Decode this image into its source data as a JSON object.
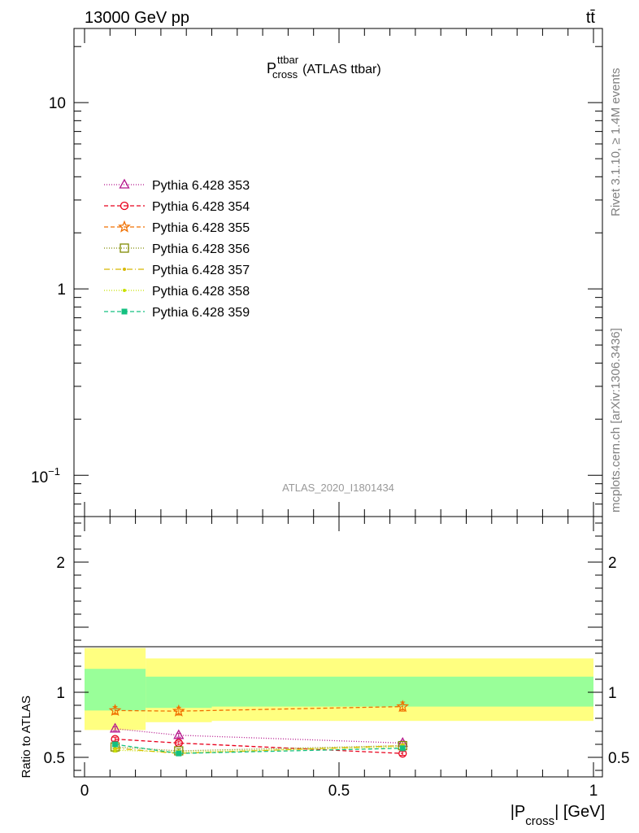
{
  "header": {
    "left_label": "13000 GeV pp",
    "right_label": "tt̄"
  },
  "top_panel": {
    "title_main": "P",
    "title_sup": "ttbar",
    "title_sub": "cross",
    "title_suffix": "(ATLAS ttbar)",
    "watermark": "ATLAS_2020_I1801434",
    "y_ticks": [
      {
        "value": 10,
        "label": "10"
      },
      {
        "value": 1,
        "label": "1"
      },
      {
        "value": 0.1,
        "label_base": "10",
        "label_exp": "−1"
      }
    ],
    "y_scale": "log",
    "ylim": [
      0.06,
      25
    ]
  },
  "side_labels": {
    "rivet": "Rivet 3.1.10, ≥ 1.4M events",
    "mcplots": "mcplots.cern.ch [arXiv:1306.3436]"
  },
  "legend": {
    "placement": "top-left",
    "entries": [
      {
        "label": "Pythia 6.428 353",
        "color": "#b5168c",
        "marker": "triangle-open",
        "dash": "1,2"
      },
      {
        "label": "Pythia 6.428 354",
        "color": "#e8001c",
        "marker": "circle-open",
        "dash": "5,3"
      },
      {
        "label": "Pythia 6.428 355",
        "color": "#f07000",
        "marker": "star-open",
        "dash": "5,3"
      },
      {
        "label": "Pythia 6.428 356",
        "color": "#7f8a00",
        "marker": "square-open",
        "dash": "1,2"
      },
      {
        "label": "Pythia 6.428 357",
        "color": "#d8b800",
        "marker": "dot-small",
        "dash": "7,3,1,3"
      },
      {
        "label": "Pythia 6.428 358",
        "color": "#c8e000",
        "marker": "dot-small",
        "dash": "1,2"
      },
      {
        "label": "Pythia 6.428 359",
        "color": "#14c080",
        "marker": "square-filled",
        "dash": "5,3"
      }
    ]
  },
  "chart_data": {
    "type": "line",
    "x_label_pre": "|P",
    "x_label_sub": "cross",
    "x_label_post": "| [GeV]",
    "ratio_ylabel": "Ratio to ATLAS",
    "xlim": [
      0,
      1
    ],
    "ratio_ylim": [
      0.35,
      2.35
    ],
    "x_ticks": [
      "0",
      "0.5",
      "1"
    ],
    "ratio_y_ticks": [
      "0.5",
      "1",
      "2"
    ],
    "bins": [
      {
        "lo": 0.0,
        "hi": 0.12,
        "green": [
          0.86,
          1.18
        ],
        "yellow": [
          0.71,
          1.34
        ]
      },
      {
        "lo": 0.12,
        "hi": 0.25,
        "green": [
          0.88,
          1.12
        ],
        "yellow": [
          0.77,
          1.26
        ]
      },
      {
        "lo": 0.25,
        "hi": 1.0,
        "green": [
          0.89,
          1.12
        ],
        "yellow": [
          0.78,
          1.26
        ]
      }
    ],
    "x": [
      0.06,
      0.185,
      0.625
    ],
    "series": [
      {
        "name": "Pythia 6.428 353",
        "values": [
          0.72,
          0.67,
          0.61
        ],
        "err": [
          0.015,
          0.015,
          0.015
        ]
      },
      {
        "name": "Pythia 6.428 354",
        "values": [
          0.64,
          0.61,
          0.53
        ],
        "err": [
          0.015,
          0.015,
          0.015
        ]
      },
      {
        "name": "Pythia 6.428 355",
        "values": [
          0.86,
          0.855,
          0.89
        ],
        "err": [
          0.03,
          0.03,
          0.035
        ]
      },
      {
        "name": "Pythia 6.428 356",
        "values": [
          0.58,
          0.55,
          0.59
        ],
        "err": [
          0.015,
          0.015,
          0.015
        ]
      },
      {
        "name": "Pythia 6.428 357",
        "values": [
          0.57,
          0.53,
          0.59
        ],
        "err": [
          0.015,
          0.015,
          0.015
        ]
      },
      {
        "name": "Pythia 6.428 358",
        "values": [
          0.555,
          0.54,
          0.58
        ],
        "err": [
          0.015,
          0.015,
          0.015
        ]
      },
      {
        "name": "Pythia 6.428 359",
        "values": [
          0.6,
          0.53,
          0.57
        ],
        "err": [
          0.015,
          0.015,
          0.015
        ]
      }
    ]
  }
}
